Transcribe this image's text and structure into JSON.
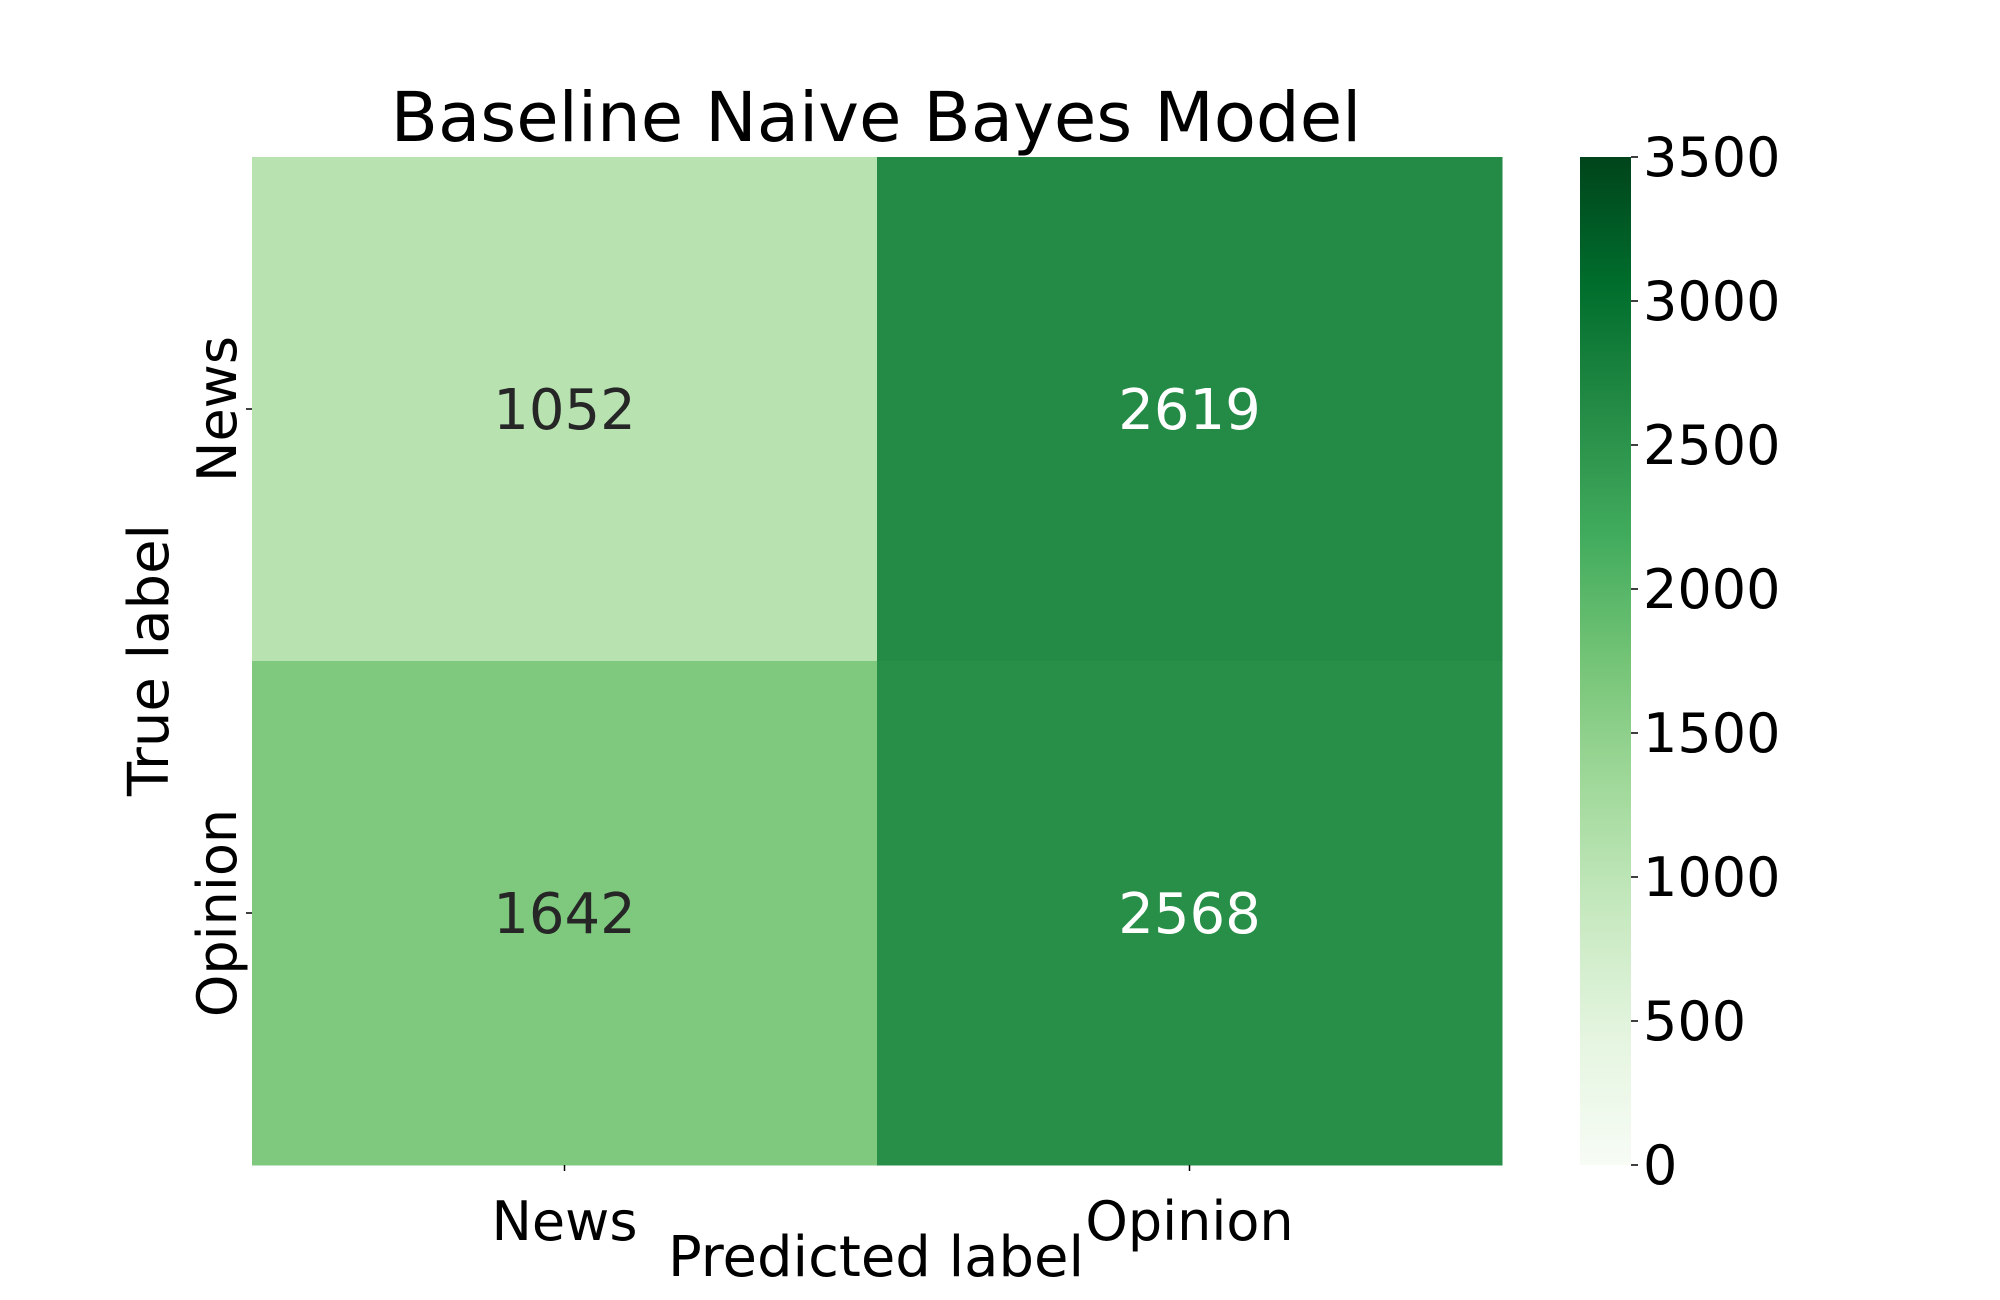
{
  "chart_data": {
    "type": "heatmap",
    "title": "Baseline Naive Bayes Model",
    "xlabel": "Predicted label",
    "ylabel": "True label",
    "x_categories": [
      "News",
      "Opinion"
    ],
    "y_categories": [
      "News",
      "Opinion"
    ],
    "values": [
      [
        1052,
        2619
      ],
      [
        1642,
        2568
      ]
    ],
    "colormap": "Greens",
    "vmin": 0,
    "vmax": 3500,
    "colorbar_ticks": [
      0,
      500,
      1000,
      1500,
      2000,
      2500,
      3000,
      3500
    ],
    "colorbar_tick_labels": [
      "0",
      "500",
      "1000",
      "1500",
      "2000",
      "2500",
      "3000",
      "3500"
    ],
    "colormap_stops": [
      "#f7fcf5",
      "#e5f5e0",
      "#c7e9c0",
      "#a1d99b",
      "#74c476",
      "#41ab5d",
      "#238b45",
      "#006d2c",
      "#00441b"
    ],
    "text_colors": {
      "dark": "#262626",
      "light": "#ffffff"
    }
  }
}
